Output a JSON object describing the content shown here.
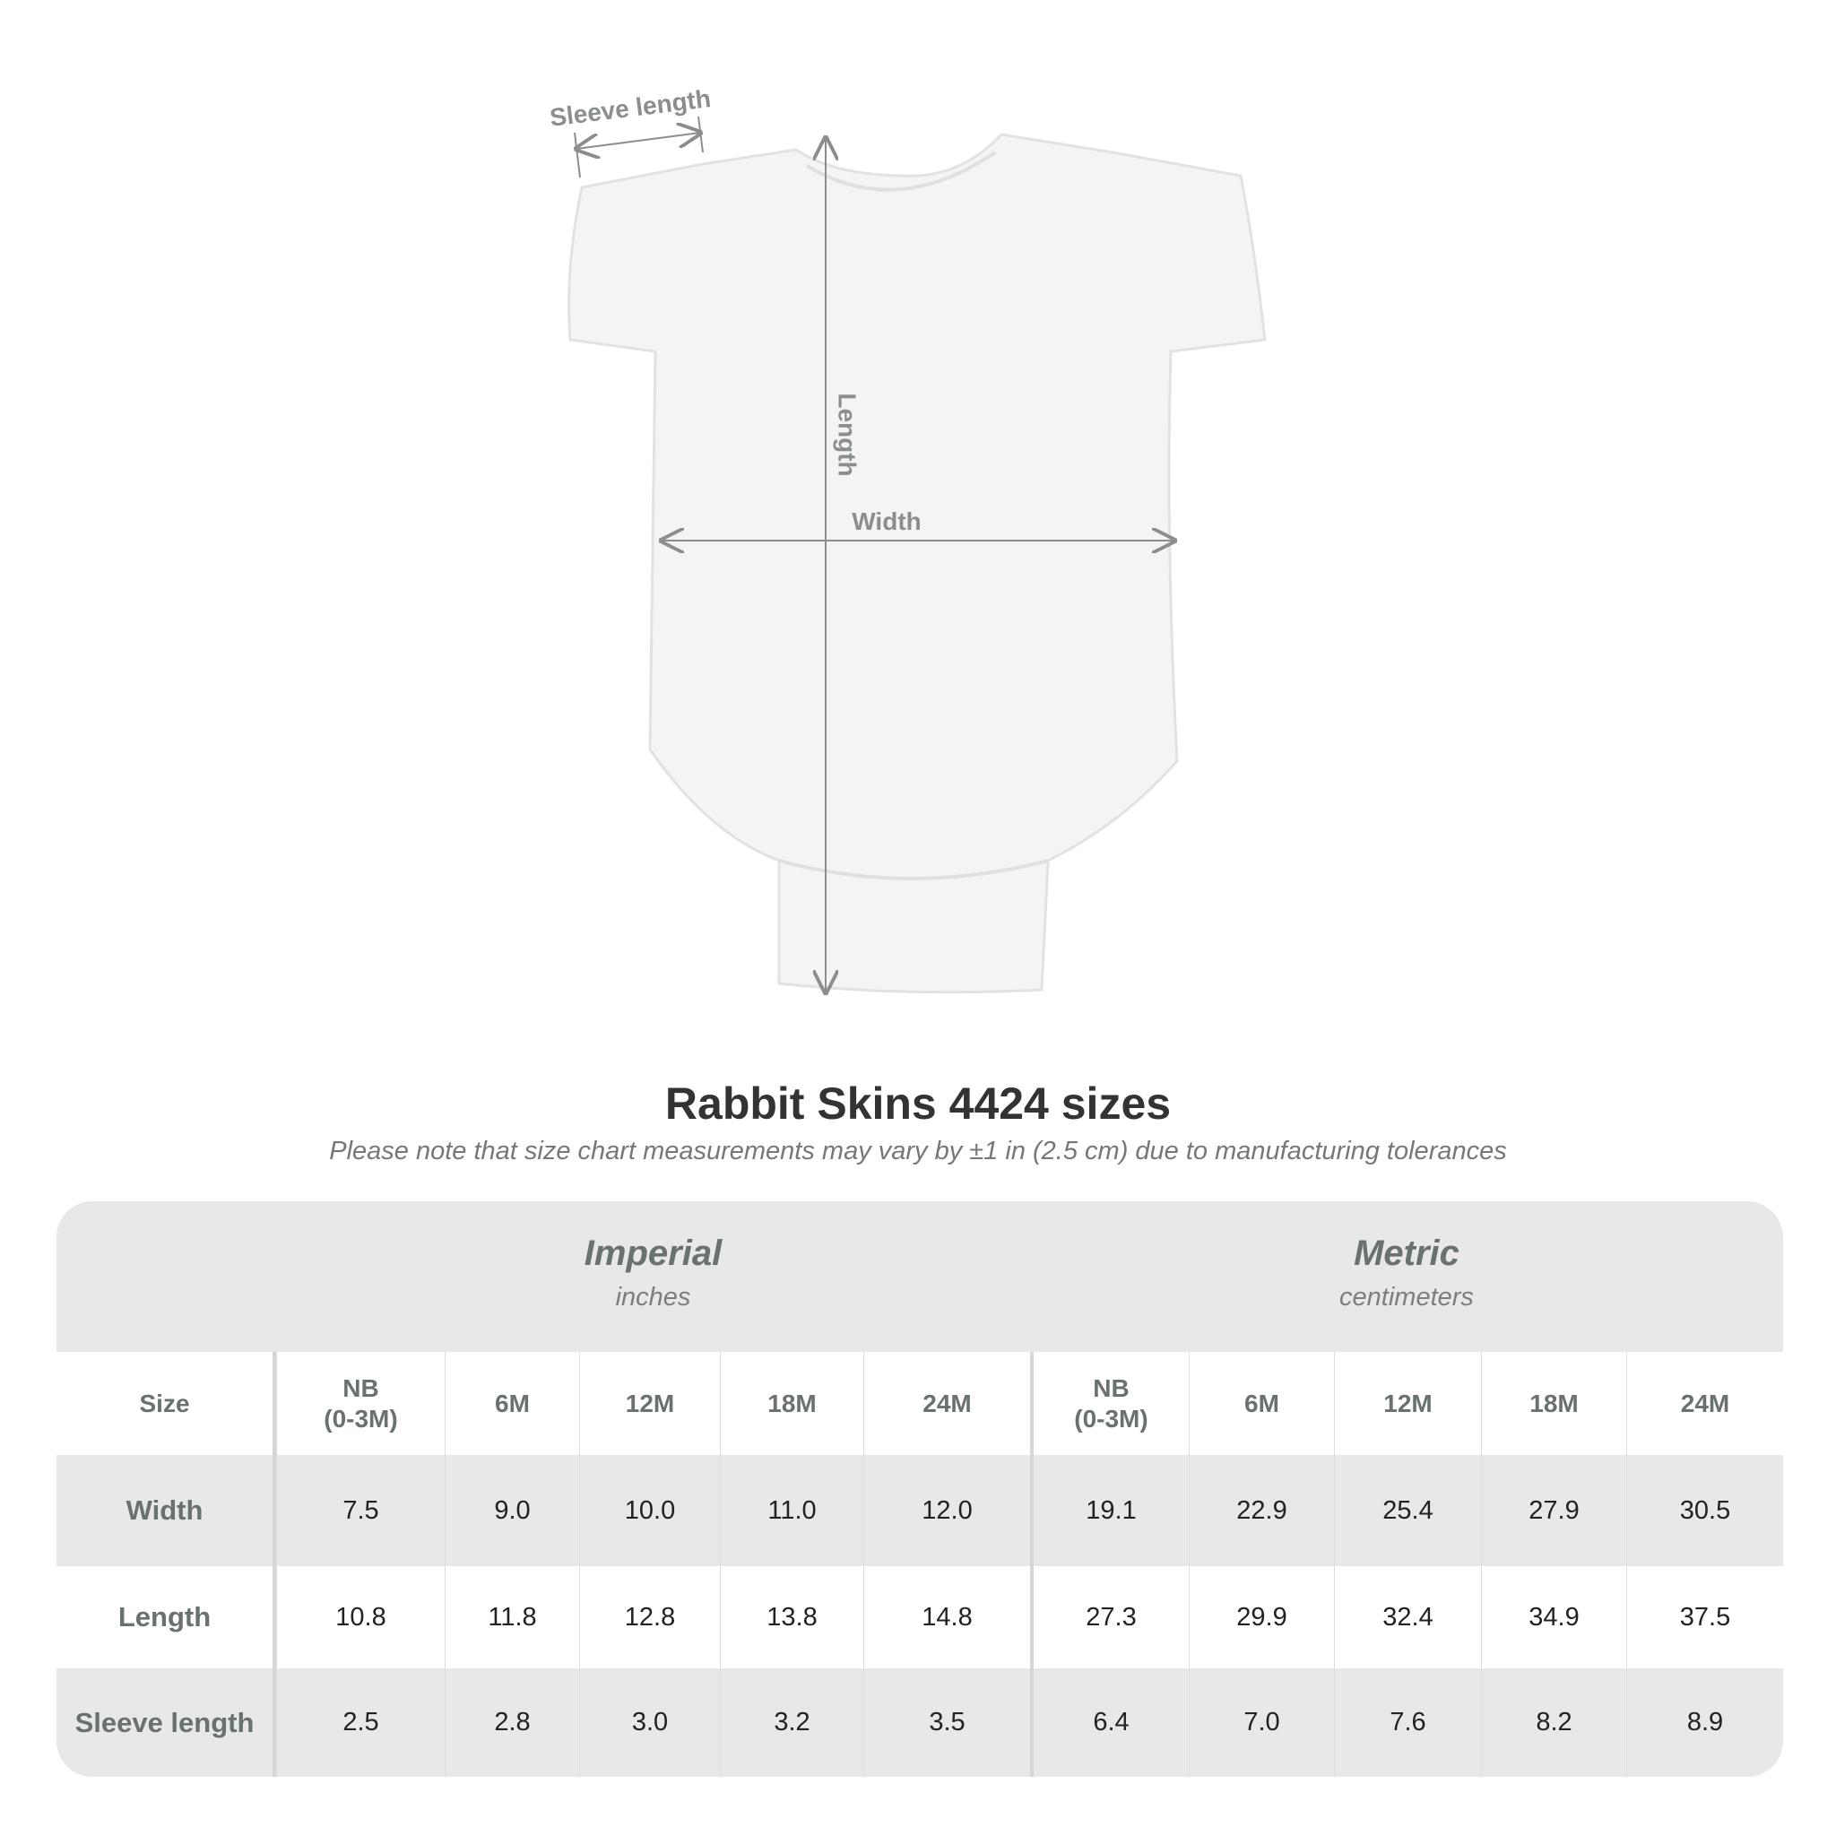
{
  "diagram": {
    "labels": {
      "sleeve": "Sleeve length",
      "length": "Length",
      "width": "Width"
    },
    "garment_color": "#f4f4f4",
    "line_color": "#8a8f8e"
  },
  "title": "Rabbit Skins 4424 sizes",
  "note": "Please note that size chart measurements may vary by ±1 in (2.5 cm) due to manufacturing tolerances",
  "table": {
    "imperial": {
      "label": "Imperial",
      "unit": "inches"
    },
    "metric": {
      "label": "Metric",
      "unit": "centimeters"
    },
    "size_header": "Size",
    "sizes": [
      "NB\n(0-3M)",
      "6M",
      "12M",
      "18M",
      "24M"
    ],
    "rows": [
      {
        "label": "Width",
        "imperial": [
          "7.5",
          "9.0",
          "10.0",
          "11.0",
          "12.0"
        ],
        "metric": [
          "19.1",
          "22.9",
          "25.4",
          "27.9",
          "30.5"
        ]
      },
      {
        "label": "Length",
        "imperial": [
          "10.8",
          "11.8",
          "12.8",
          "13.8",
          "14.8"
        ],
        "metric": [
          "27.3",
          "29.9",
          "32.4",
          "34.9",
          "37.5"
        ]
      },
      {
        "label": "Sleeve length",
        "imperial": [
          "2.5",
          "2.8",
          "3.0",
          "3.2",
          "3.5"
        ],
        "metric": [
          "6.4",
          "7.0",
          "7.6",
          "8.2",
          "8.9"
        ]
      }
    ]
  }
}
